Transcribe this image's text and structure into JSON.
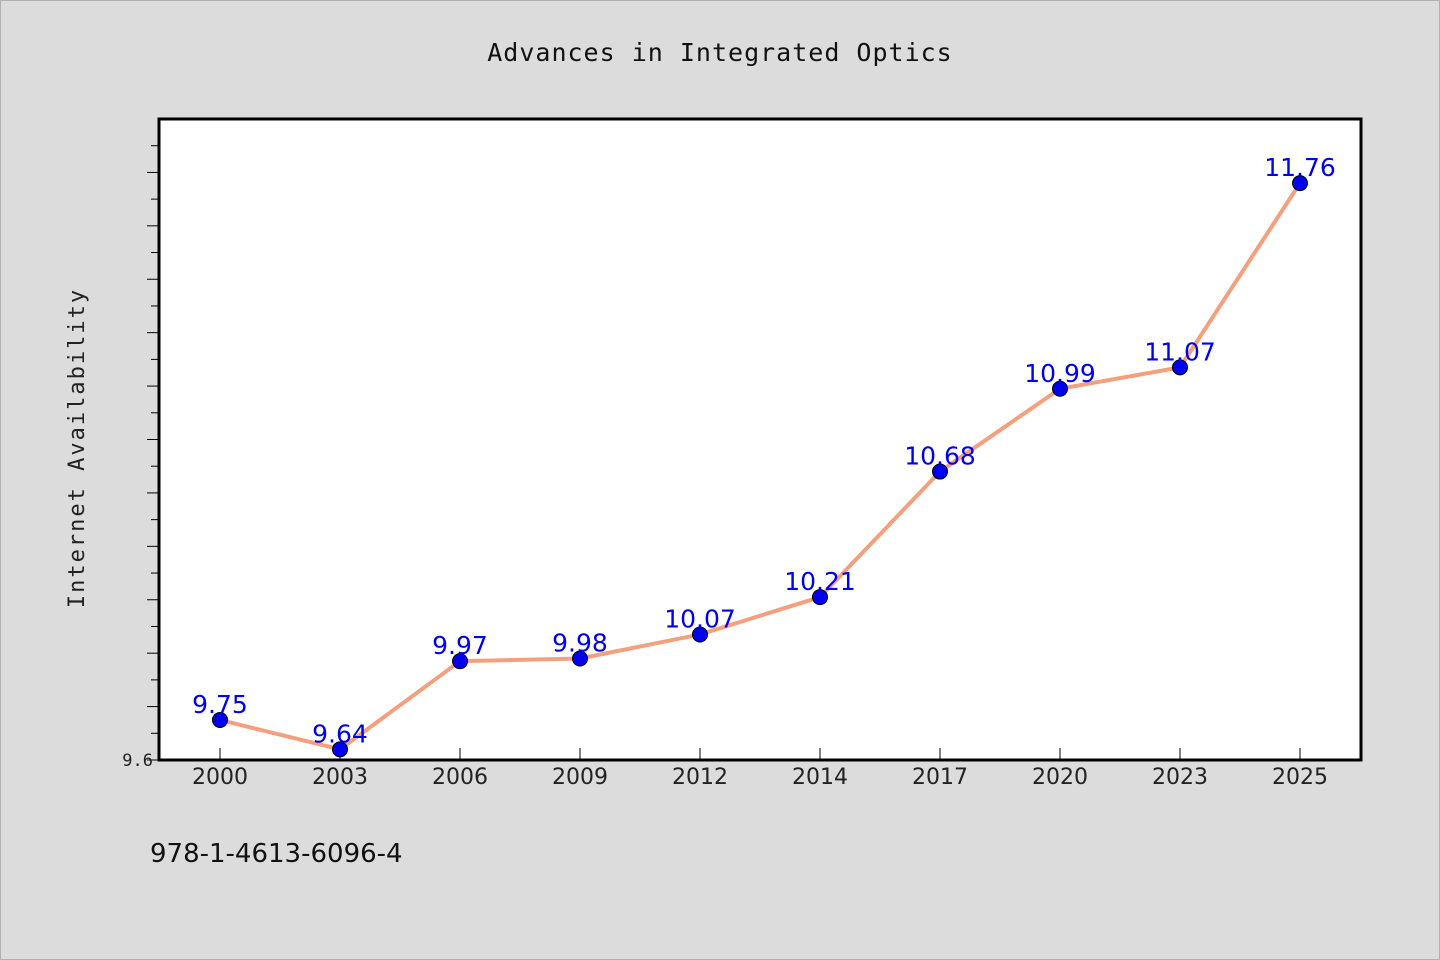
{
  "chart_data": {
    "type": "line",
    "title": "Advances in Integrated Optics",
    "xlabel": "",
    "ylabel": "Internet Availability",
    "categories": [
      "2000",
      "2003",
      "2006",
      "2009",
      "2012",
      "2014",
      "2017",
      "2020",
      "2023",
      "2025"
    ],
    "series": [
      {
        "values": [
          9.75,
          9.64,
          9.97,
          9.98,
          10.07,
          10.21,
          10.68,
          10.99,
          11.07,
          11.76
        ],
        "labels": [
          "9.75",
          "9.64",
          "9.97",
          "9.98",
          "10.07",
          "10.21",
          "10.68",
          "10.99",
          "11.07",
          "11.76"
        ],
        "line_color": "#f4a07e",
        "marker_color": "#0000ee"
      }
    ],
    "ylim": [
      9.6,
      12.0
    ],
    "ytick_labels": [
      "9.6"
    ],
    "grid": false,
    "legend": "none"
  },
  "footer": {
    "isbn": "978-1-4613-6096-4"
  },
  "colors": {
    "background": "#dcdcdc",
    "plot_background": "#ffffff",
    "label_color": "#0000ee"
  }
}
